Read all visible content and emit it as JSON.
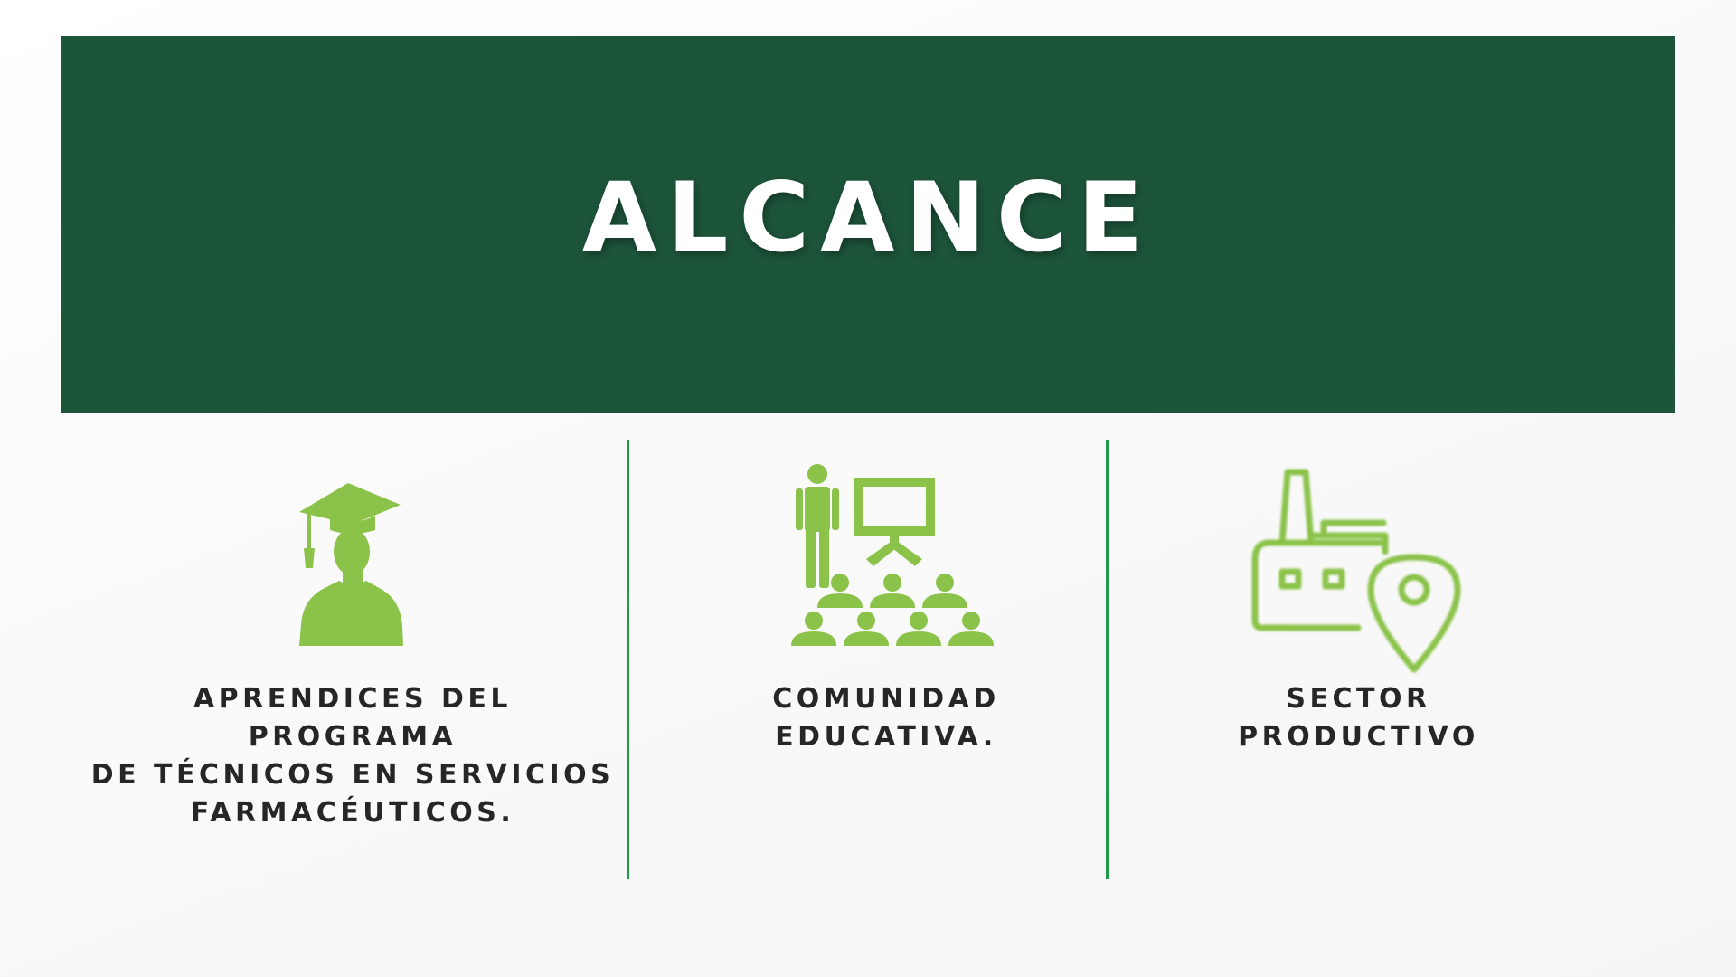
{
  "title": "ALCANCE",
  "colors": {
    "banner": "#1d553b",
    "icon_green": "#8bc34a",
    "divider": "#1f9a4a",
    "text": "#262626"
  },
  "items": [
    {
      "icon": "graduate-icon",
      "label": "APRENDICES DEL PROGRAMA\nDE TÉCNICOS EN SERVICIOS\nFARMACÉUTICOS."
    },
    {
      "icon": "classroom-presentation-icon",
      "label": "COMUNIDAD\nEDUCATIVA."
    },
    {
      "icon": "factory-location-icon",
      "label": "SECTOR\nPRODUCTIVO"
    }
  ]
}
